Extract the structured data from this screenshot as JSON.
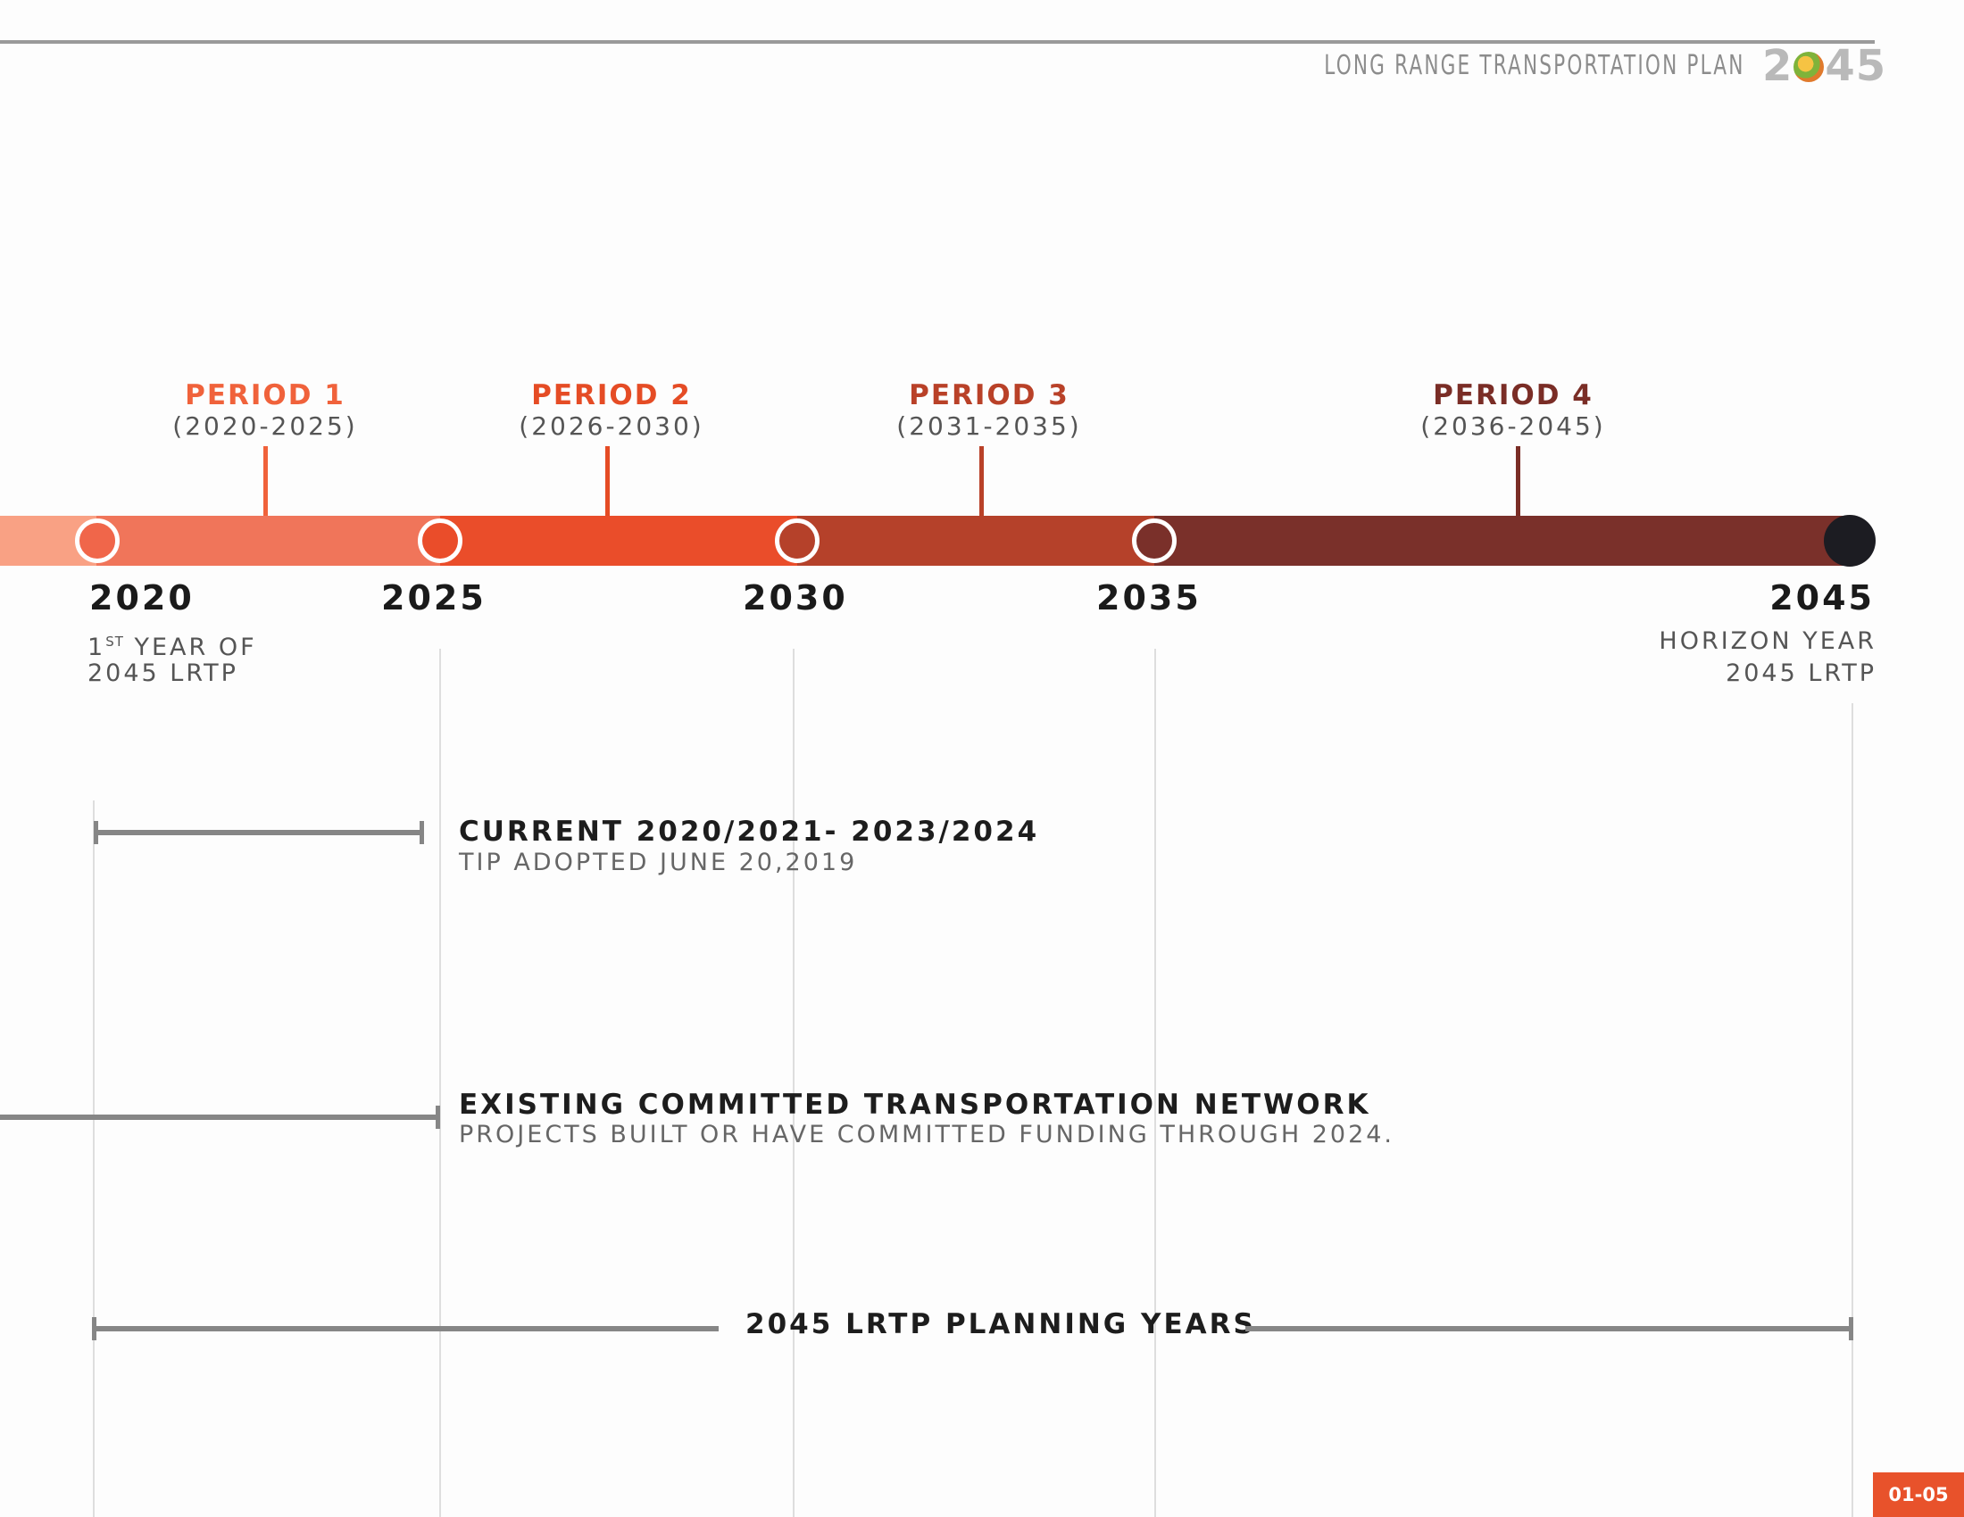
{
  "header": {
    "doc_title": "LONG RANGE TRANSPORTATION PLAN",
    "doc_year_prefix": "2",
    "doc_year_suffix": "45"
  },
  "periods": [
    {
      "title": "PERIOD 1",
      "range": "(2020-2025)",
      "color": "#f0623b"
    },
    {
      "title": "PERIOD 2",
      "range": "(2026-2030)",
      "color": "#e54c25"
    },
    {
      "title": "PERIOD 3",
      "range": "(2031-2035)",
      "color": "#b94128"
    },
    {
      "title": "PERIOD 4",
      "range": "(2036-2045)",
      "color": "#7a2d26"
    }
  ],
  "milestones": [
    {
      "year": "2020",
      "sub1": "1ST YEAR OF",
      "sub1_sup": "ST",
      "sub2": "2045 LRTP"
    },
    {
      "year": "2025"
    },
    {
      "year": "2030"
    },
    {
      "year": "2035"
    },
    {
      "year": "2045",
      "sub1": "HORIZON YEAR",
      "sub2": "2045 LRTP"
    }
  ],
  "colors": {
    "lead_in": "#f9a184",
    "seg1": "#f0755a",
    "seg2": "#ea4d2a",
    "seg3": "#b5412a",
    "seg4": "#7a302a",
    "node1": "#f0664a",
    "node2": "#ea4d2a",
    "node3": "#b5412a",
    "node4": "#7a302a",
    "node_end": "#1c1c22",
    "badge": "#e8522b"
  },
  "ranges": {
    "tip_title": "CURRENT 2020/2021- 2023/2024",
    "tip_sub": "TIP ADOPTED JUNE 20,2019",
    "network_title": "EXISTING COMMITTED TRANSPORTATION NETWORK",
    "network_sub": "PROJECTS BUILT OR HAVE COMMITTED FUNDING THROUGH 2024.",
    "planning_title": "2045 LRTP PLANNING YEARS"
  },
  "page_number": "01-05"
}
